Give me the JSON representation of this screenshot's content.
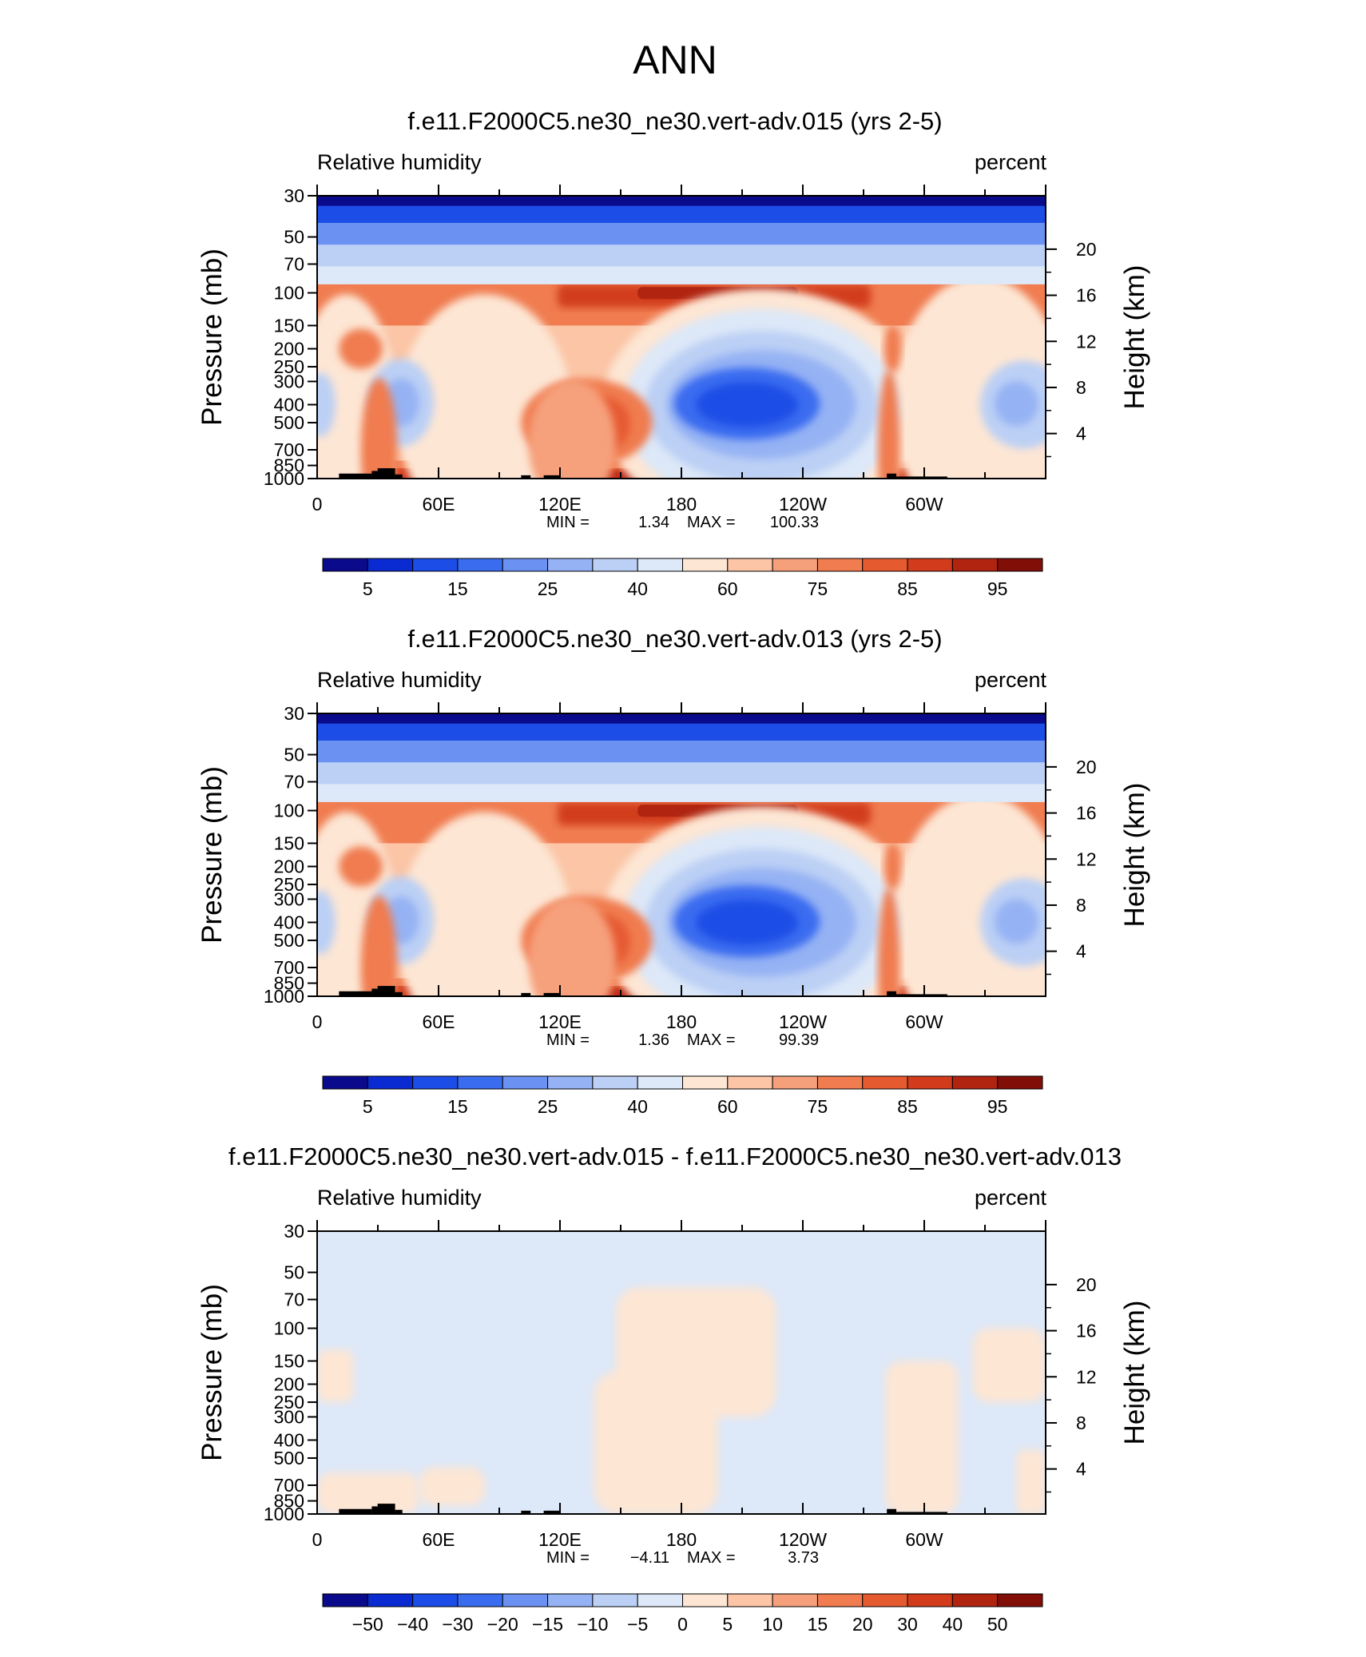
{
  "page_title": "ANN",
  "chart_data": [
    {
      "type": "heatmap",
      "title": "f.e11.F2000C5.ne30_ne30.vert-adv.015 (yrs 2-5)",
      "left_label": "Relative humidity",
      "right_label": "percent",
      "ylabel": "Pressure (mb)",
      "y2label": "Height (km)",
      "x_ticks": [
        "0",
        "60E",
        "120E",
        "180",
        "120W",
        "60W"
      ],
      "y_ticks": [
        "30",
        "50",
        "70",
        "100",
        "150",
        "200",
        "250",
        "300",
        "400",
        "500",
        "700",
        "850",
        "1000"
      ],
      "y_ticks_values": [
        30,
        50,
        70,
        100,
        150,
        200,
        250,
        300,
        400,
        500,
        700,
        850,
        1000
      ],
      "y2_ticks": [
        "20",
        "16",
        "12",
        "8",
        "4"
      ],
      "y2_ticks_values": [
        20,
        16,
        12,
        8,
        4
      ],
      "stats_min_label": "MIN =",
      "stats_min": "1.34",
      "stats_max_label": "MAX =",
      "stats_max": "100.33",
      "colorbar_labels": [
        "5",
        "15",
        "25",
        "40",
        "60",
        "75",
        "85",
        "95"
      ],
      "colorbar_colors": [
        "#0a0a8c",
        "#0a2ad2",
        "#1c4de6",
        "#3a6cf0",
        "#6b92f2",
        "#95b2f4",
        "#bcd0f5",
        "#dde8f8",
        "#fde6d4",
        "#fbc5a6",
        "#f6a07b",
        "#f07c50",
        "#e65a30",
        "#d23c1c",
        "#b02410",
        "#820e08"
      ]
    },
    {
      "type": "heatmap",
      "title": "f.e11.F2000C5.ne30_ne30.vert-adv.013 (yrs 2-5)",
      "left_label": "Relative humidity",
      "right_label": "percent",
      "ylabel": "Pressure (mb)",
      "y2label": "Height (km)",
      "x_ticks": [
        "0",
        "60E",
        "120E",
        "180",
        "120W",
        "60W"
      ],
      "y_ticks": [
        "30",
        "50",
        "70",
        "100",
        "150",
        "200",
        "250",
        "300",
        "400",
        "500",
        "700",
        "850",
        "1000"
      ],
      "y_ticks_values": [
        30,
        50,
        70,
        100,
        150,
        200,
        250,
        300,
        400,
        500,
        700,
        850,
        1000
      ],
      "y2_ticks": [
        "20",
        "16",
        "12",
        "8",
        "4"
      ],
      "y2_ticks_values": [
        20,
        16,
        12,
        8,
        4
      ],
      "stats_min_label": "MIN =",
      "stats_min": "1.36",
      "stats_max_label": "MAX =",
      "stats_max": "99.39",
      "colorbar_labels": [
        "5",
        "15",
        "25",
        "40",
        "60",
        "75",
        "85",
        "95"
      ],
      "colorbar_colors": [
        "#0a0a8c",
        "#0a2ad2",
        "#1c4de6",
        "#3a6cf0",
        "#6b92f2",
        "#95b2f4",
        "#bcd0f5",
        "#dde8f8",
        "#fde6d4",
        "#fbc5a6",
        "#f6a07b",
        "#f07c50",
        "#e65a30",
        "#d23c1c",
        "#b02410",
        "#820e08"
      ]
    },
    {
      "type": "heatmap",
      "title": "f.e11.F2000C5.ne30_ne30.vert-adv.015 - f.e11.F2000C5.ne30_ne30.vert-adv.013",
      "left_label": "Relative humidity",
      "right_label": "percent",
      "ylabel": "Pressure (mb)",
      "y2label": "Height (km)",
      "x_ticks": [
        "0",
        "60E",
        "120E",
        "180",
        "120W",
        "60W"
      ],
      "y_ticks": [
        "30",
        "50",
        "70",
        "100",
        "150",
        "200",
        "250",
        "300",
        "400",
        "500",
        "700",
        "850",
        "1000"
      ],
      "y_ticks_values": [
        30,
        50,
        70,
        100,
        150,
        200,
        250,
        300,
        400,
        500,
        700,
        850,
        1000
      ],
      "y2_ticks": [
        "20",
        "16",
        "12",
        "8",
        "4"
      ],
      "y2_ticks_values": [
        20,
        16,
        12,
        8,
        4
      ],
      "stats_min_label": "MIN =",
      "stats_min": "−4.11",
      "stats_max_label": "MAX =",
      "stats_max": "3.73",
      "colorbar_labels": [
        "−50",
        "−40",
        "−30",
        "−20",
        "−15",
        "−10",
        "−5",
        "0",
        "5",
        "10",
        "15",
        "20",
        "30",
        "40",
        "50"
      ],
      "colorbar_colors": [
        "#0a0a8c",
        "#0a2ad2",
        "#1c4de6",
        "#3a6cf0",
        "#6b92f2",
        "#95b2f4",
        "#bcd0f5",
        "#dde8f8",
        "#fde6d4",
        "#fbc5a6",
        "#f6a07b",
        "#f07c50",
        "#e65a30",
        "#d23c1c",
        "#b02410",
        "#820e08"
      ]
    }
  ]
}
